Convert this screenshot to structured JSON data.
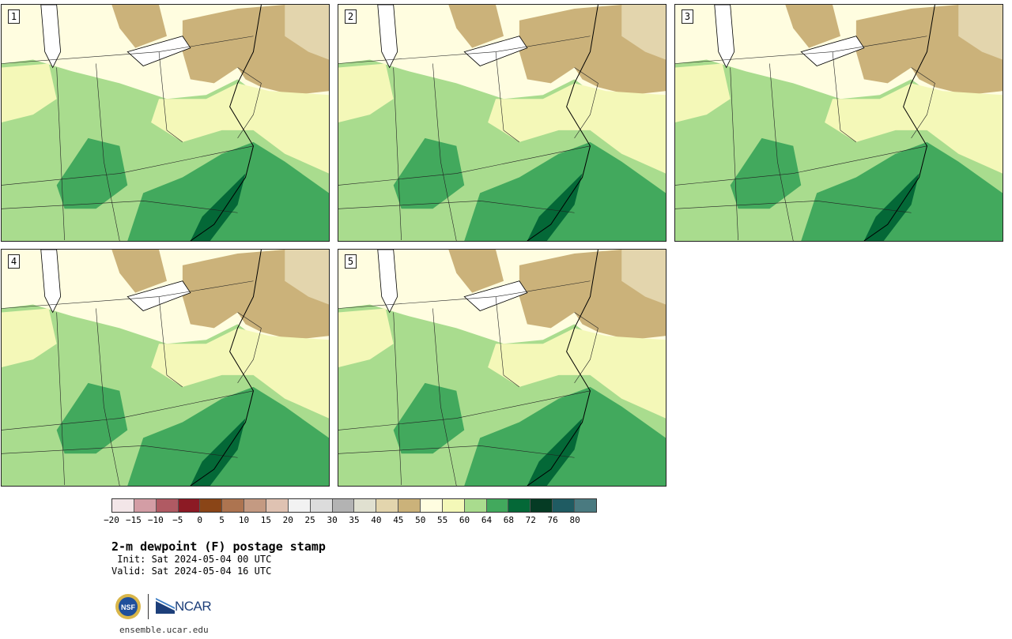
{
  "panels": [
    {
      "label": "1"
    },
    {
      "label": "2"
    },
    {
      "label": "3"
    },
    {
      "label": "4"
    },
    {
      "label": "5"
    }
  ],
  "colorbar": {
    "colors": [
      "#f3e6e8",
      "#d39da5",
      "#b05a63",
      "#8c1a24",
      "#8a4517",
      "#ad7450",
      "#c49a82",
      "#dfc2b2",
      "#f2f2f2",
      "#dcdcdc",
      "#b3b3b3",
      "#e0e0d0",
      "#e3d5ad",
      "#cbb27a",
      "#fffde0",
      "#f4f8b8",
      "#a9dc8e",
      "#42a95d",
      "#046837",
      "#053b24",
      "#1f5b62",
      "#4a7a80"
    ],
    "ticks": [
      "−20",
      "−15",
      "−10",
      "−5",
      "0",
      "5",
      "10",
      "15",
      "20",
      "25",
      "30",
      "35",
      "40",
      "45",
      "50",
      "55",
      "60",
      "64",
      "68",
      "72",
      "76",
      "80"
    ]
  },
  "title": "2-m dewpoint (F) postage stamp",
  "init": " Init: Sat 2024-05-04 00 UTC",
  "valid": "Valid: Sat 2024-05-04 16 UTC",
  "logos": {
    "left": "NSF",
    "right": "NCAR"
  },
  "site": "ensemble.ucar.edu"
}
